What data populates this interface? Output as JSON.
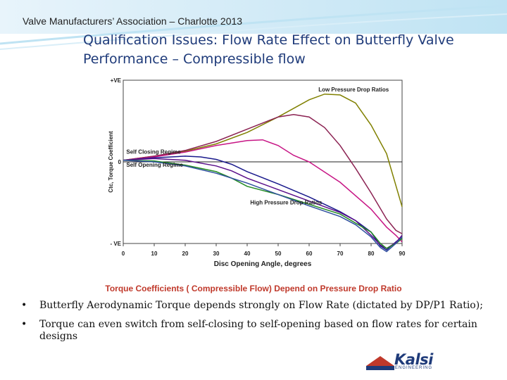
{
  "header": {
    "subtitle": "Valve Manufacturers’ Association – Charlotte 2013"
  },
  "slide": {
    "title": "Qualification Issues: Flow Rate Effect on Butterfly Valve Performance – Compressible flow",
    "caption": "Torque Coefficients ( Compressible Flow) Depend on Pressure Drop Ratio",
    "bullets": [
      "Butterfly Aerodynamic Torque depends strongly on  Flow Rate (dictated by DP/P1 Ratio);",
      "Torque can even switch from self-closing to self-opening based on flow rates for certain designs"
    ],
    "bullet_glyph": "•"
  },
  "logo": {
    "name": "Kalsi",
    "tagline": "ENGINEERING"
  },
  "colors": {
    "title": "#1f3b7a",
    "caption": "#c0392b",
    "accent": "#bfe3f3"
  },
  "chart_data": {
    "type": "line",
    "xlabel": "Disc Opening Angle, degrees",
    "ylabel": "Ctc, Torque Coefficient",
    "xlim": [
      0,
      90
    ],
    "xticks": [
      0,
      10,
      20,
      30,
      40,
      50,
      60,
      70,
      80,
      90
    ],
    "yticks": [
      {
        "label": "+VE",
        "value": 1
      },
      {
        "label": "0",
        "value": 0
      },
      {
        "label": "- VE",
        "value": -1
      }
    ],
    "ylim": [
      -1.0,
      1.0
    ],
    "annotations": [
      {
        "text": "Low Pressure Drop Ratios",
        "x": 63,
        "y": 0.86
      },
      {
        "text": "Self Closing Regime",
        "x": 1,
        "y": 0.1
      },
      {
        "text": "Self Opening Regime",
        "x": 1,
        "y": -0.06
      },
      {
        "text": "High Pressure Drop Ratios",
        "x": 41,
        "y": -0.52
      }
    ],
    "series": [
      {
        "color": "#808000",
        "x": [
          0,
          10,
          20,
          30,
          40,
          50,
          60,
          65,
          70,
          75,
          80,
          85,
          90
        ],
        "y": [
          0.02,
          0.07,
          0.13,
          0.22,
          0.36,
          0.55,
          0.76,
          0.83,
          0.82,
          0.72,
          0.45,
          0.1,
          -0.55
        ]
      },
      {
        "color": "#8b2252",
        "x": [
          0,
          10,
          20,
          30,
          40,
          50,
          55,
          60,
          65,
          70,
          75,
          80,
          85,
          88,
          90
        ],
        "y": [
          0.02,
          0.07,
          0.14,
          0.25,
          0.4,
          0.55,
          0.58,
          0.55,
          0.42,
          0.2,
          -0.08,
          -0.38,
          -0.7,
          -0.84,
          -0.88
        ]
      },
      {
        "color": "#c71585",
        "x": [
          0,
          10,
          20,
          30,
          40,
          45,
          50,
          55,
          60,
          70,
          80,
          85,
          88,
          90
        ],
        "y": [
          0.02,
          0.06,
          0.12,
          0.2,
          0.26,
          0.27,
          0.2,
          0.08,
          0.0,
          -0.25,
          -0.58,
          -0.8,
          -0.9,
          -0.98
        ]
      },
      {
        "color": "#1a1a8c",
        "x": [
          0,
          10,
          20,
          25,
          30,
          35,
          40,
          50,
          60,
          70,
          75,
          80,
          83,
          85,
          88,
          90
        ],
        "y": [
          0.02,
          0.05,
          0.07,
          0.06,
          0.03,
          -0.03,
          -0.12,
          -0.27,
          -0.43,
          -0.61,
          -0.72,
          -0.86,
          -1.03,
          -1.08,
          -0.98,
          -0.92
        ]
      },
      {
        "color": "#5a0f8a",
        "x": [
          0,
          10,
          20,
          30,
          35,
          40,
          50,
          60,
          70,
          75,
          80,
          83,
          85,
          88,
          90
        ],
        "y": [
          0.02,
          0.04,
          0.02,
          -0.05,
          -0.11,
          -0.2,
          -0.34,
          -0.48,
          -0.62,
          -0.72,
          -0.9,
          -1.02,
          -1.06,
          -0.99,
          -0.9
        ]
      },
      {
        "color": "#228b22",
        "x": [
          0,
          10,
          20,
          30,
          35,
          40,
          50,
          60,
          70,
          80,
          83,
          85,
          88,
          90
        ],
        "y": [
          0.02,
          0.01,
          -0.04,
          -0.12,
          -0.2,
          -0.3,
          -0.4,
          -0.52,
          -0.64,
          -0.86,
          -1.0,
          -1.06,
          -1.0,
          -0.94
        ]
      },
      {
        "color": "#2f4f9f",
        "x": [
          0,
          10,
          20,
          30,
          40,
          50,
          60,
          70,
          75,
          80,
          83,
          85,
          88,
          90
        ],
        "y": [
          0.02,
          0.0,
          -0.05,
          -0.14,
          -0.26,
          -0.4,
          -0.54,
          -0.67,
          -0.77,
          -0.92,
          -1.05,
          -1.1,
          -1.0,
          -0.92
        ]
      }
    ]
  }
}
